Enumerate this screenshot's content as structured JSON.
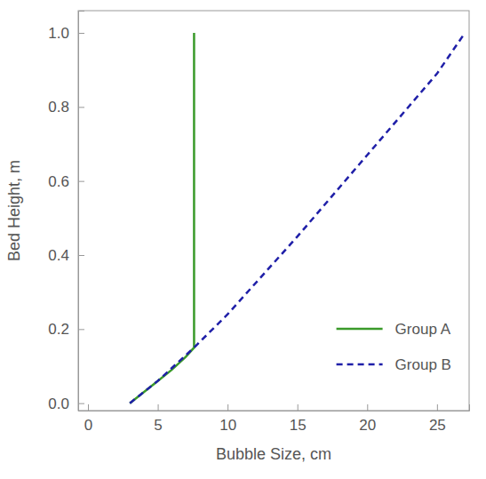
{
  "chart_data": {
    "type": "line",
    "x_label": "Bubble Size, cm",
    "y_label": "Bed Height, m",
    "xlim": [
      -0.7,
      27.3
    ],
    "ylim": [
      -0.02,
      1.06
    ],
    "xticks": [
      0,
      5,
      10,
      15,
      20,
      25
    ],
    "yticks": [
      {
        "value": 0,
        "label": "0.0"
      },
      {
        "value": 0.2,
        "label": "0.2"
      },
      {
        "value": 0.4,
        "label": "0.4"
      },
      {
        "value": 0.6,
        "label": "0.6"
      },
      {
        "value": 0.8,
        "label": "0.8"
      },
      {
        "value": 1,
        "label": "1.0"
      }
    ],
    "grid": false,
    "legend": "lower right",
    "series": [
      {
        "name": "Group A",
        "color": "#3a9a2a",
        "line_style": "solid",
        "x": [
          3,
          4,
          5,
          6,
          7,
          7.6,
          7.6
        ],
        "values": [
          0,
          0.03,
          0.06,
          0.09,
          0.125,
          0.15,
          1.0
        ]
      },
      {
        "name": "Group B",
        "color": "#1f1fa8",
        "line_style": "dashed",
        "x": [
          3,
          5,
          7.6,
          10,
          15,
          20,
          25,
          27
        ],
        "values": [
          0,
          0.06,
          0.15,
          0.24,
          0.45,
          0.67,
          0.89,
          1.0
        ]
      }
    ]
  }
}
